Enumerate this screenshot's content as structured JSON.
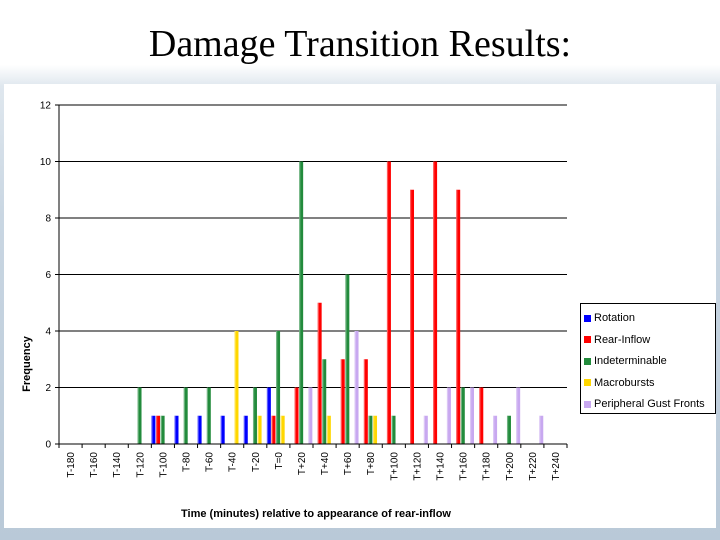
{
  "slide": {
    "title": "Damage Transition Results:"
  },
  "chart_data": {
    "type": "bar",
    "title": "",
    "xlabel": "Time (minutes) relative to appearance of rear-inflow",
    "ylabel": "Frequency",
    "ylim": [
      0,
      12
    ],
    "yticks": [
      0,
      2,
      4,
      6,
      8,
      10,
      12
    ],
    "grid": true,
    "legend_position": "right",
    "categories": [
      "T-180",
      "T-160",
      "T-140",
      "T-120",
      "T-100",
      "T-80",
      "T-60",
      "T-40",
      "T-20",
      "T=0",
      "T+20",
      "T+40",
      "T+60",
      "T+80",
      "T+100",
      "T+120",
      "T+140",
      "T+160",
      "T+180",
      "T+200",
      "T+220",
      "T+240"
    ],
    "series": [
      {
        "name": "Rotation",
        "color": "#0000ff",
        "values": [
          0,
          0,
          0,
          0,
          1,
          1,
          1,
          1,
          1,
          2,
          0,
          0,
          0,
          0,
          0,
          0,
          0,
          0,
          0,
          0,
          0,
          0
        ]
      },
      {
        "name": "Rear-Inflow",
        "color": "#ff0000",
        "values": [
          0,
          0,
          0,
          0,
          1,
          0,
          0,
          0,
          0,
          1,
          2,
          5,
          3,
          3,
          10,
          9,
          10,
          9,
          2,
          0,
          0,
          0
        ]
      },
      {
        "name": "Indeterminable",
        "color": "#228b3c",
        "values": [
          0,
          0,
          0,
          2,
          1,
          2,
          2,
          0,
          2,
          4,
          10,
          3,
          6,
          1,
          1,
          0,
          0,
          2,
          0,
          1,
          0,
          0
        ]
      },
      {
        "name": "Macrobursts",
        "color": "#ffd700",
        "values": [
          0,
          0,
          0,
          0,
          0,
          0,
          0,
          4,
          1,
          1,
          0,
          1,
          0,
          1,
          0,
          0,
          0,
          0,
          0,
          0,
          0,
          0
        ]
      },
      {
        "name": "Peripheral Gust Fronts",
        "color": "#c8a8f0",
        "values": [
          0,
          0,
          0,
          0,
          0,
          0,
          0,
          0,
          0,
          0,
          2,
          0,
          4,
          0,
          0,
          1,
          2,
          2,
          1,
          2,
          1,
          0
        ]
      }
    ]
  }
}
